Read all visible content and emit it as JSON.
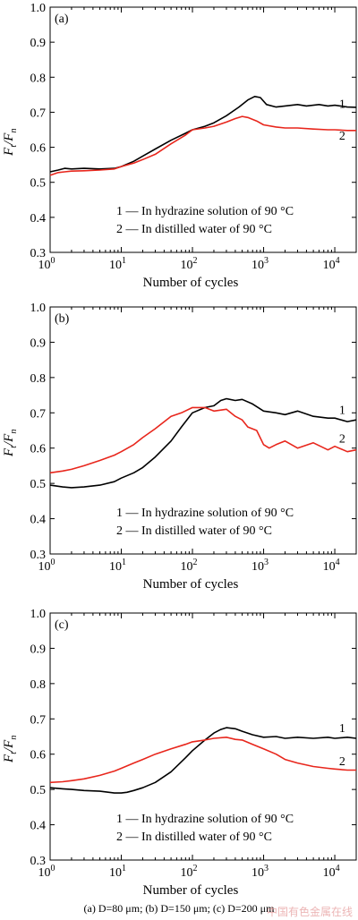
{
  "caption": "(a) D=80 μm; (b) D=150 μm; (c) D=200 μm",
  "watermark": "中国有色金属在线",
  "colors": {
    "curve1": "#000000",
    "curve2": "#e8261c"
  },
  "chart_data": [
    {
      "type": "line",
      "panel_label": "(a)",
      "xlabel": "Number of cycles",
      "ylabel": "Ft/Fn",
      "xscale": "log",
      "xlim": [
        1,
        20000
      ],
      "ylim": [
        0.3,
        1.0
      ],
      "xticks": [
        {
          "v": 1,
          "b": "10",
          "e": "0"
        },
        {
          "v": 10,
          "b": "10",
          "e": "1"
        },
        {
          "v": 100,
          "b": "10",
          "e": "2"
        },
        {
          "v": 1000,
          "b": "10",
          "e": "3"
        },
        {
          "v": 10000,
          "b": "10",
          "e": "4"
        }
      ],
      "yticks": [
        0.3,
        0.4,
        0.5,
        0.6,
        0.7,
        0.8,
        0.9,
        1.0
      ],
      "legend": [
        "1 — In hydrazine solution of 90 °C",
        "2 — In distilled water of 90 °C"
      ],
      "series": [
        {
          "name": "1",
          "color": "#000000",
          "label_at": [
            11500,
            0.725
          ],
          "x": [
            1,
            1.3,
            1.6,
            2,
            3,
            5,
            8,
            10,
            15,
            20,
            30,
            50,
            80,
            100,
            150,
            200,
            300,
            450,
            600,
            750,
            900,
            1100,
            1500,
            2000,
            3000,
            4000,
            6000,
            8000,
            10000,
            15000,
            20000
          ],
          "y": [
            0.53,
            0.535,
            0.54,
            0.538,
            0.54,
            0.538,
            0.54,
            0.545,
            0.56,
            0.575,
            0.595,
            0.62,
            0.64,
            0.65,
            0.66,
            0.67,
            0.69,
            0.715,
            0.735,
            0.745,
            0.742,
            0.722,
            0.715,
            0.718,
            0.722,
            0.718,
            0.722,
            0.718,
            0.72,
            0.715,
            0.714
          ]
        },
        {
          "name": "2",
          "color": "#e8261c",
          "label_at": [
            11500,
            0.635
          ],
          "x": [
            1,
            1.3,
            1.6,
            2,
            3,
            5,
            8,
            10,
            15,
            20,
            30,
            50,
            80,
            100,
            150,
            200,
            300,
            400,
            500,
            600,
            800,
            1000,
            1500,
            2000,
            3000,
            5000,
            8000,
            10000,
            15000,
            20000
          ],
          "y": [
            0.52,
            0.528,
            0.53,
            0.532,
            0.533,
            0.535,
            0.538,
            0.545,
            0.555,
            0.565,
            0.58,
            0.61,
            0.635,
            0.65,
            0.655,
            0.66,
            0.672,
            0.682,
            0.688,
            0.685,
            0.675,
            0.664,
            0.658,
            0.655,
            0.655,
            0.652,
            0.65,
            0.65,
            0.648,
            0.648
          ]
        }
      ]
    },
    {
      "type": "line",
      "panel_label": "(b)",
      "xlabel": "Number of cycles",
      "ylabel": "Ft/Fn",
      "xscale": "log",
      "xlim": [
        1,
        20000
      ],
      "ylim": [
        0.3,
        1.0
      ],
      "xticks": [
        {
          "v": 1,
          "b": "10",
          "e": "0"
        },
        {
          "v": 10,
          "b": "10",
          "e": "1"
        },
        {
          "v": 100,
          "b": "10",
          "e": "2"
        },
        {
          "v": 1000,
          "b": "10",
          "e": "3"
        },
        {
          "v": 10000,
          "b": "10",
          "e": "4"
        }
      ],
      "yticks": [
        0.3,
        0.4,
        0.5,
        0.6,
        0.7,
        0.8,
        0.9,
        1.0
      ],
      "legend": [
        "1 — In hydrazine solution of 90 °C",
        "2 — In distilled water of 90 °C"
      ],
      "series": [
        {
          "name": "1",
          "color": "#000000",
          "label_at": [
            11500,
            0.71
          ],
          "x": [
            1,
            1.5,
            2,
            3,
            5,
            8,
            10,
            15,
            20,
            30,
            50,
            70,
            100,
            150,
            200,
            250,
            300,
            400,
            500,
            700,
            1000,
            1500,
            2000,
            3000,
            5000,
            8000,
            10000,
            15000,
            20000
          ],
          "y": [
            0.495,
            0.49,
            0.488,
            0.49,
            0.495,
            0.505,
            0.515,
            0.53,
            0.545,
            0.575,
            0.62,
            0.66,
            0.7,
            0.715,
            0.72,
            0.735,
            0.74,
            0.735,
            0.738,
            0.725,
            0.705,
            0.7,
            0.695,
            0.705,
            0.69,
            0.685,
            0.685,
            0.675,
            0.68
          ]
        },
        {
          "name": "2",
          "color": "#e8261c",
          "label_at": [
            11500,
            0.628
          ],
          "x": [
            1,
            1.5,
            2,
            3,
            5,
            8,
            10,
            15,
            20,
            30,
            50,
            70,
            100,
            150,
            200,
            300,
            400,
            500,
            600,
            800,
            1000,
            1200,
            1500,
            2000,
            3000,
            5000,
            8000,
            10000,
            15000,
            20000
          ],
          "y": [
            0.53,
            0.535,
            0.54,
            0.55,
            0.565,
            0.58,
            0.59,
            0.61,
            0.63,
            0.655,
            0.69,
            0.7,
            0.715,
            0.715,
            0.705,
            0.71,
            0.69,
            0.68,
            0.66,
            0.65,
            0.61,
            0.6,
            0.61,
            0.62,
            0.6,
            0.615,
            0.595,
            0.605,
            0.59,
            0.595
          ]
        }
      ]
    },
    {
      "type": "line",
      "panel_label": "(c)",
      "xlabel": "Number of cycles",
      "ylabel": "Ft/Fn",
      "xscale": "log",
      "xlim": [
        1,
        20000
      ],
      "ylim": [
        0.3,
        1.0
      ],
      "xticks": [
        {
          "v": 1,
          "b": "10",
          "e": "0"
        },
        {
          "v": 10,
          "b": "10",
          "e": "1"
        },
        {
          "v": 100,
          "b": "10",
          "e": "2"
        },
        {
          "v": 1000,
          "b": "10",
          "e": "3"
        },
        {
          "v": 10000,
          "b": "10",
          "e": "4"
        }
      ],
      "yticks": [
        0.3,
        0.4,
        0.5,
        0.6,
        0.7,
        0.8,
        0.9,
        1.0
      ],
      "legend": [
        "1 — In hydrazine solution of 90 °C",
        "2 — In distilled water of 90 °C"
      ],
      "series": [
        {
          "name": "1",
          "color": "#000000",
          "label_at": [
            11500,
            0.675
          ],
          "x": [
            1,
            1.5,
            2,
            3,
            5,
            8,
            10,
            12,
            15,
            20,
            30,
            50,
            80,
            100,
            150,
            200,
            250,
            300,
            400,
            500,
            700,
            1000,
            1500,
            2000,
            3000,
            5000,
            8000,
            10000,
            15000,
            20000
          ],
          "y": [
            0.505,
            0.502,
            0.5,
            0.497,
            0.495,
            0.49,
            0.49,
            0.492,
            0.497,
            0.505,
            0.52,
            0.55,
            0.59,
            0.61,
            0.64,
            0.66,
            0.67,
            0.675,
            0.672,
            0.665,
            0.655,
            0.648,
            0.65,
            0.645,
            0.648,
            0.645,
            0.648,
            0.645,
            0.648,
            0.645
          ]
        },
        {
          "name": "2",
          "color": "#e8261c",
          "label_at": [
            11500,
            0.582
          ],
          "x": [
            1,
            1.5,
            2,
            3,
            5,
            8,
            10,
            15,
            20,
            30,
            50,
            80,
            100,
            150,
            200,
            300,
            400,
            500,
            700,
            1000,
            1500,
            2000,
            3000,
            5000,
            8000,
            10000,
            15000,
            20000
          ],
          "y": [
            0.52,
            0.522,
            0.525,
            0.53,
            0.54,
            0.552,
            0.56,
            0.575,
            0.585,
            0.6,
            0.615,
            0.628,
            0.635,
            0.64,
            0.645,
            0.648,
            0.642,
            0.64,
            0.628,
            0.615,
            0.6,
            0.585,
            0.575,
            0.565,
            0.56,
            0.558,
            0.555,
            0.555
          ]
        }
      ]
    }
  ]
}
